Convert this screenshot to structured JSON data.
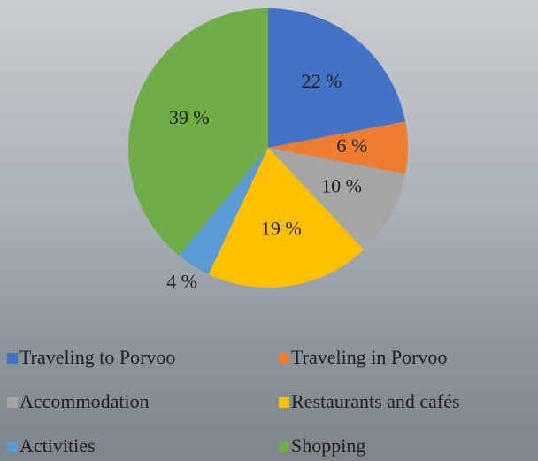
{
  "chart_data": {
    "type": "pie",
    "categories": [
      "Traveling to Porvoo",
      "Traveling in Porvoo",
      "Accommodation",
      "Restaurants and cafés",
      "Activities",
      "Shopping"
    ],
    "values": [
      22,
      6,
      10,
      19,
      4,
      39
    ],
    "value_labels": [
      "22 %",
      "6 %",
      "10 %",
      "19 %",
      "4 %",
      "39 %"
    ],
    "colors": [
      "#4472c4",
      "#ed7d31",
      "#a5a5a5",
      "#ffc000",
      "#5b9bd5",
      "#70ad47"
    ],
    "legend": "bottom"
  }
}
